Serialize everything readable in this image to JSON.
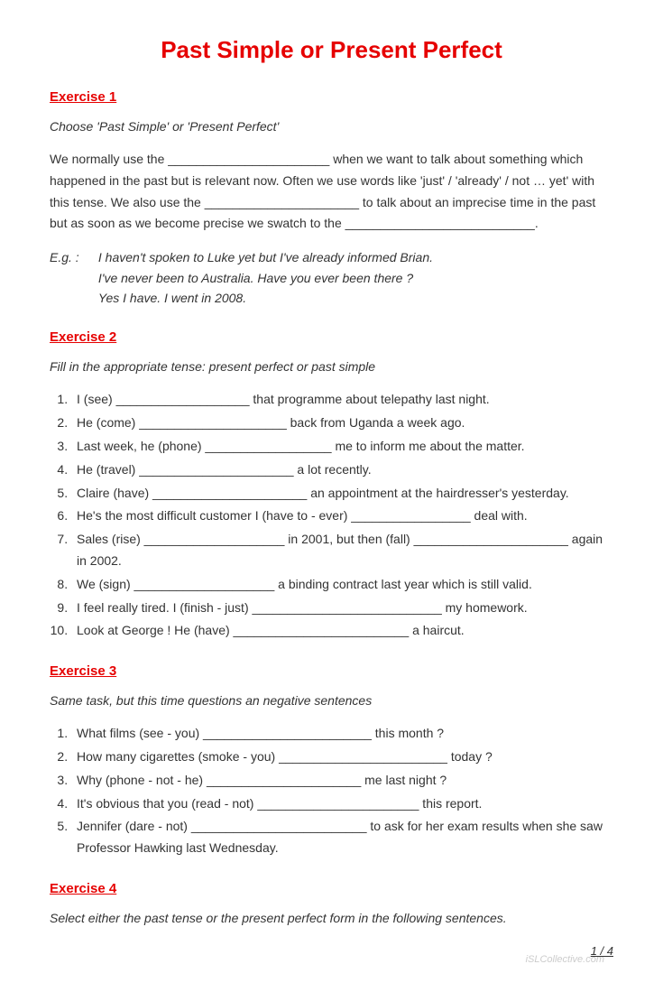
{
  "colors": {
    "accent": "#e60000",
    "text": "#333333",
    "background": "#ffffff",
    "watermark": "#cccccc"
  },
  "title": "Past Simple or Present Perfect",
  "page_label": "1 / 4",
  "watermark": "iSLCollective.com",
  "ex1": {
    "heading": "Exercise 1",
    "instruction": "Choose 'Past Simple' or 'Present Perfect'",
    "body": "We normally use the _______________________ when we want to talk about something which happened in the past but is relevant now. Often we use words like 'just' / 'already' / not … yet' with this tense. We also use the ______________________ to talk about an imprecise time in the past but as soon as we become precise we swatch to the ___________________________.",
    "example_label": "E.g. :",
    "example_l1": "I haven't spoken to Luke yet but I've already informed Brian.",
    "example_l2": "I've never been to Australia. Have you ever been there ?",
    "example_l3": "Yes I have. I went in 2008."
  },
  "ex2": {
    "heading": "Exercise 2",
    "instruction": "Fill in the appropriate tense: present perfect or past simple",
    "items": [
      "I (see) ___________________ that programme about telepathy last night.",
      "He (come) _____________________ back from Uganda a week ago.",
      "Last week, he (phone) __________________ me to inform me about the matter.",
      "He (travel) ______________________ a lot recently.",
      "Claire (have) ______________________ an appointment at the hairdresser's yesterday.",
      "He's the most difficult customer I (have to - ever) _________________ deal with.",
      "Sales (rise) ____________________ in 2001, but then (fall) ______________________ again in 2002.",
      "We (sign) ____________________ a binding contract last year which is still valid.",
      "I feel really tired. I (finish - just) ___________________________ my homework.",
      "Look at George ! He (have) _________________________ a haircut."
    ]
  },
  "ex3": {
    "heading": "Exercise 3",
    "instruction": "Same task, but this time questions an negative sentences",
    "items": [
      "What films (see - you) ________________________ this month ?",
      "How many cigarettes (smoke - you) ________________________ today ?",
      "Why (phone - not - he) ______________________ me last night ?",
      "It's obvious that you (read - not) _______________________ this report.",
      "Jennifer (dare - not) _________________________ to ask for her exam results when she saw Professor Hawking last Wednesday."
    ]
  },
  "ex4": {
    "heading": "Exercise 4",
    "instruction": "Select either the past tense or the present perfect form in the following sentences."
  }
}
